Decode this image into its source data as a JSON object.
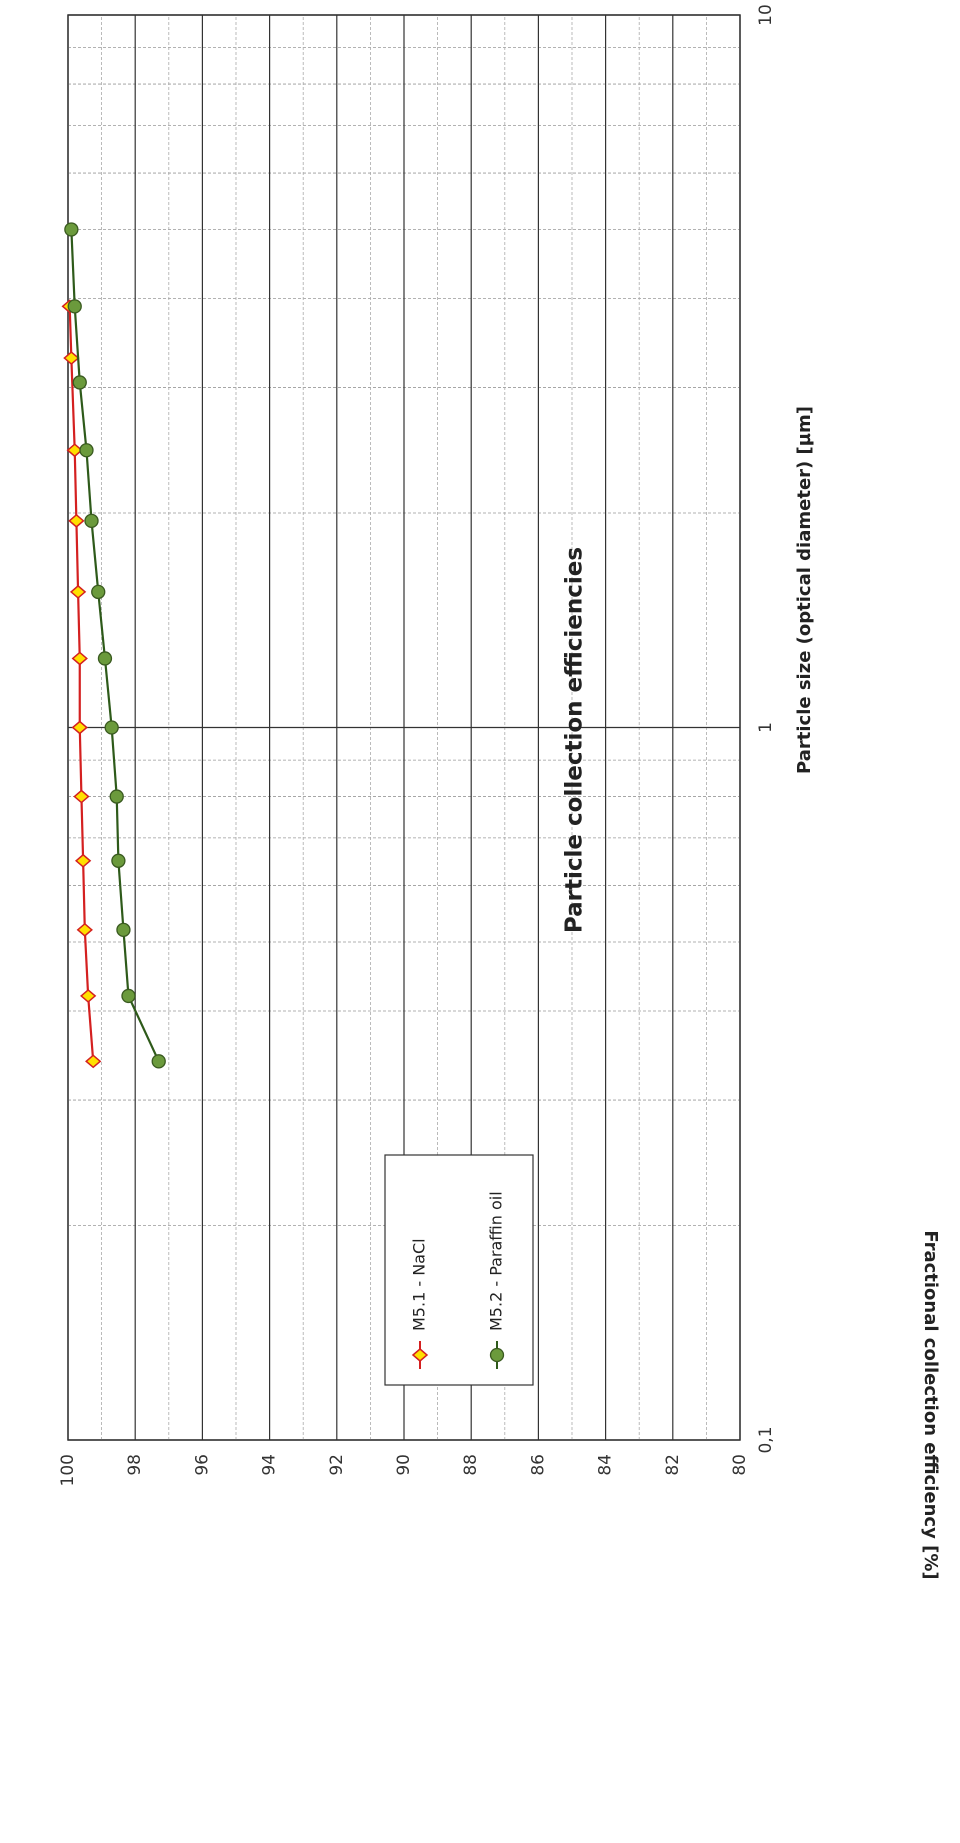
{
  "chart_data": {
    "type": "line",
    "title": "Particle collection efficiencies",
    "x_label": "Particle size (optical diameter) [µm]",
    "y_label": "Fractional collection efficiency  [%]",
    "x_scale": "log",
    "xlim": [
      0.1,
      10
    ],
    "xticks": [
      {
        "value": 0.1,
        "label": "0,1"
      },
      1,
      10
    ],
    "ylim": [
      80,
      100
    ],
    "yticks": [
      80,
      82,
      84,
      86,
      88,
      90,
      92,
      94,
      96,
      98,
      100
    ],
    "grid": true,
    "series": [
      {
        "name": "M5.1 - NaCl",
        "color": "#d42020",
        "marker": "diamond",
        "marker_color": "#ffe000",
        "x": [
          0.34,
          0.42,
          0.52,
          0.65,
          0.8,
          1,
          1.25,
          1.55,
          1.95,
          2.45,
          3.3,
          3.9
        ],
        "values": [
          99.25,
          99.4,
          99.5,
          99.55,
          99.6,
          99.65,
          99.65,
          99.7,
          99.75,
          99.8,
          99.9,
          99.95
        ]
      },
      {
        "name": "M5.2 - Paraffin oil",
        "color": "#2e5a1a",
        "marker": "circle",
        "marker_color": "#6b9a3c",
        "x": [
          0.34,
          0.42,
          0.52,
          0.65,
          0.8,
          1,
          1.25,
          1.55,
          1.95,
          2.45,
          3.05,
          3.9,
          5
        ],
        "values": [
          97.3,
          98.2,
          98.35,
          98.5,
          98.55,
          98.7,
          98.9,
          99.1,
          99.3,
          99.45,
          99.65,
          99.8,
          99.9
        ]
      }
    ]
  }
}
